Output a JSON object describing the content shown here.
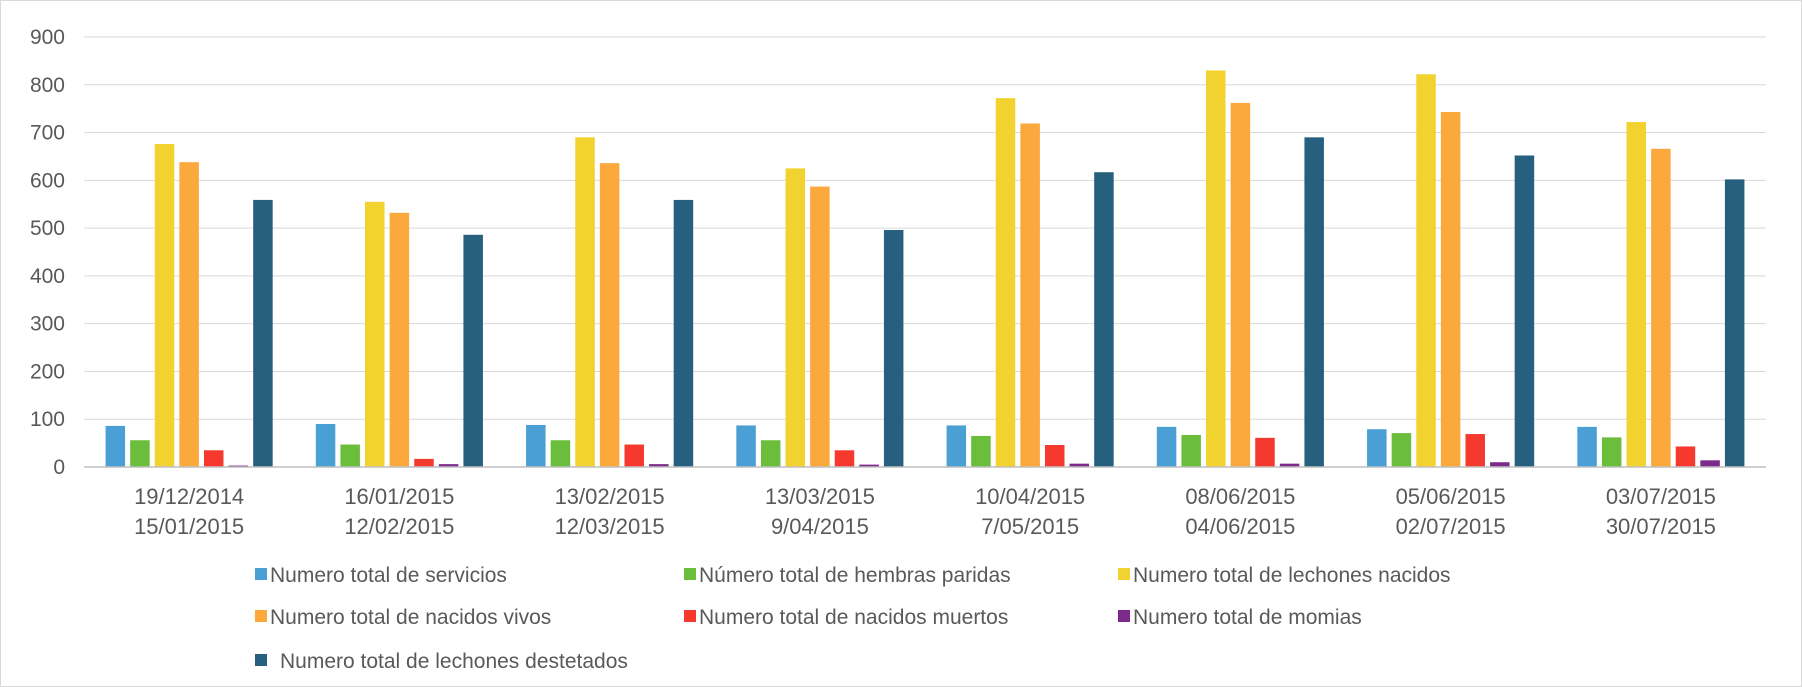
{
  "chart_data": {
    "type": "bar",
    "title": "",
    "xlabel": "",
    "ylabel": "",
    "ylim": [
      0,
      900
    ],
    "yticks": [
      0,
      100,
      200,
      300,
      400,
      500,
      600,
      700,
      800,
      900
    ],
    "grid": true,
    "legend_position": "bottom",
    "categories": [
      [
        "19/12/2014",
        "15/01/2015"
      ],
      [
        "16/01/2015",
        "12/02/2015"
      ],
      [
        "13/02/2015",
        "12/03/2015"
      ],
      [
        "13/03/2015",
        "9/04/2015"
      ],
      [
        "10/04/2015",
        "7/05/2015"
      ],
      [
        "08/06/2015",
        "04/06/2015"
      ],
      [
        "05/06/2015",
        "02/07/2015"
      ],
      [
        "03/07/2015",
        "30/07/2015"
      ]
    ],
    "series": [
      {
        "name": "Numero total de servicios",
        "color": "#4a9fd5",
        "values": [
          86,
          90,
          88,
          87,
          87,
          84,
          79,
          84
        ]
      },
      {
        "name": "Número total de hembras paridas",
        "color": "#6bbd3c",
        "values": [
          56,
          47,
          56,
          56,
          65,
          67,
          71,
          62
        ]
      },
      {
        "name": "Numero total de lechones nacidos",
        "color": "#f2d22e",
        "values": [
          676,
          555,
          690,
          625,
          772,
          830,
          822,
          722
        ]
      },
      {
        "name": "Numero total de nacidos vivos",
        "color": "#fba83c",
        "values": [
          638,
          532,
          636,
          587,
          719,
          762,
          743,
          666
        ]
      },
      {
        "name": "Numero total de nacidos muertos",
        "color": "#f6392f",
        "values": [
          35,
          17,
          47,
          35,
          46,
          61,
          69,
          43
        ]
      },
      {
        "name": "Numero total de momias",
        "color": "#7d2b8b",
        "values": [
          3,
          6,
          6,
          5,
          7,
          7,
          10,
          14
        ]
      },
      {
        "name": "Numero total de lechones destetados",
        "color": "#27607e",
        "values": [
          559,
          486,
          559,
          496,
          617,
          690,
          652,
          602
        ]
      }
    ]
  }
}
